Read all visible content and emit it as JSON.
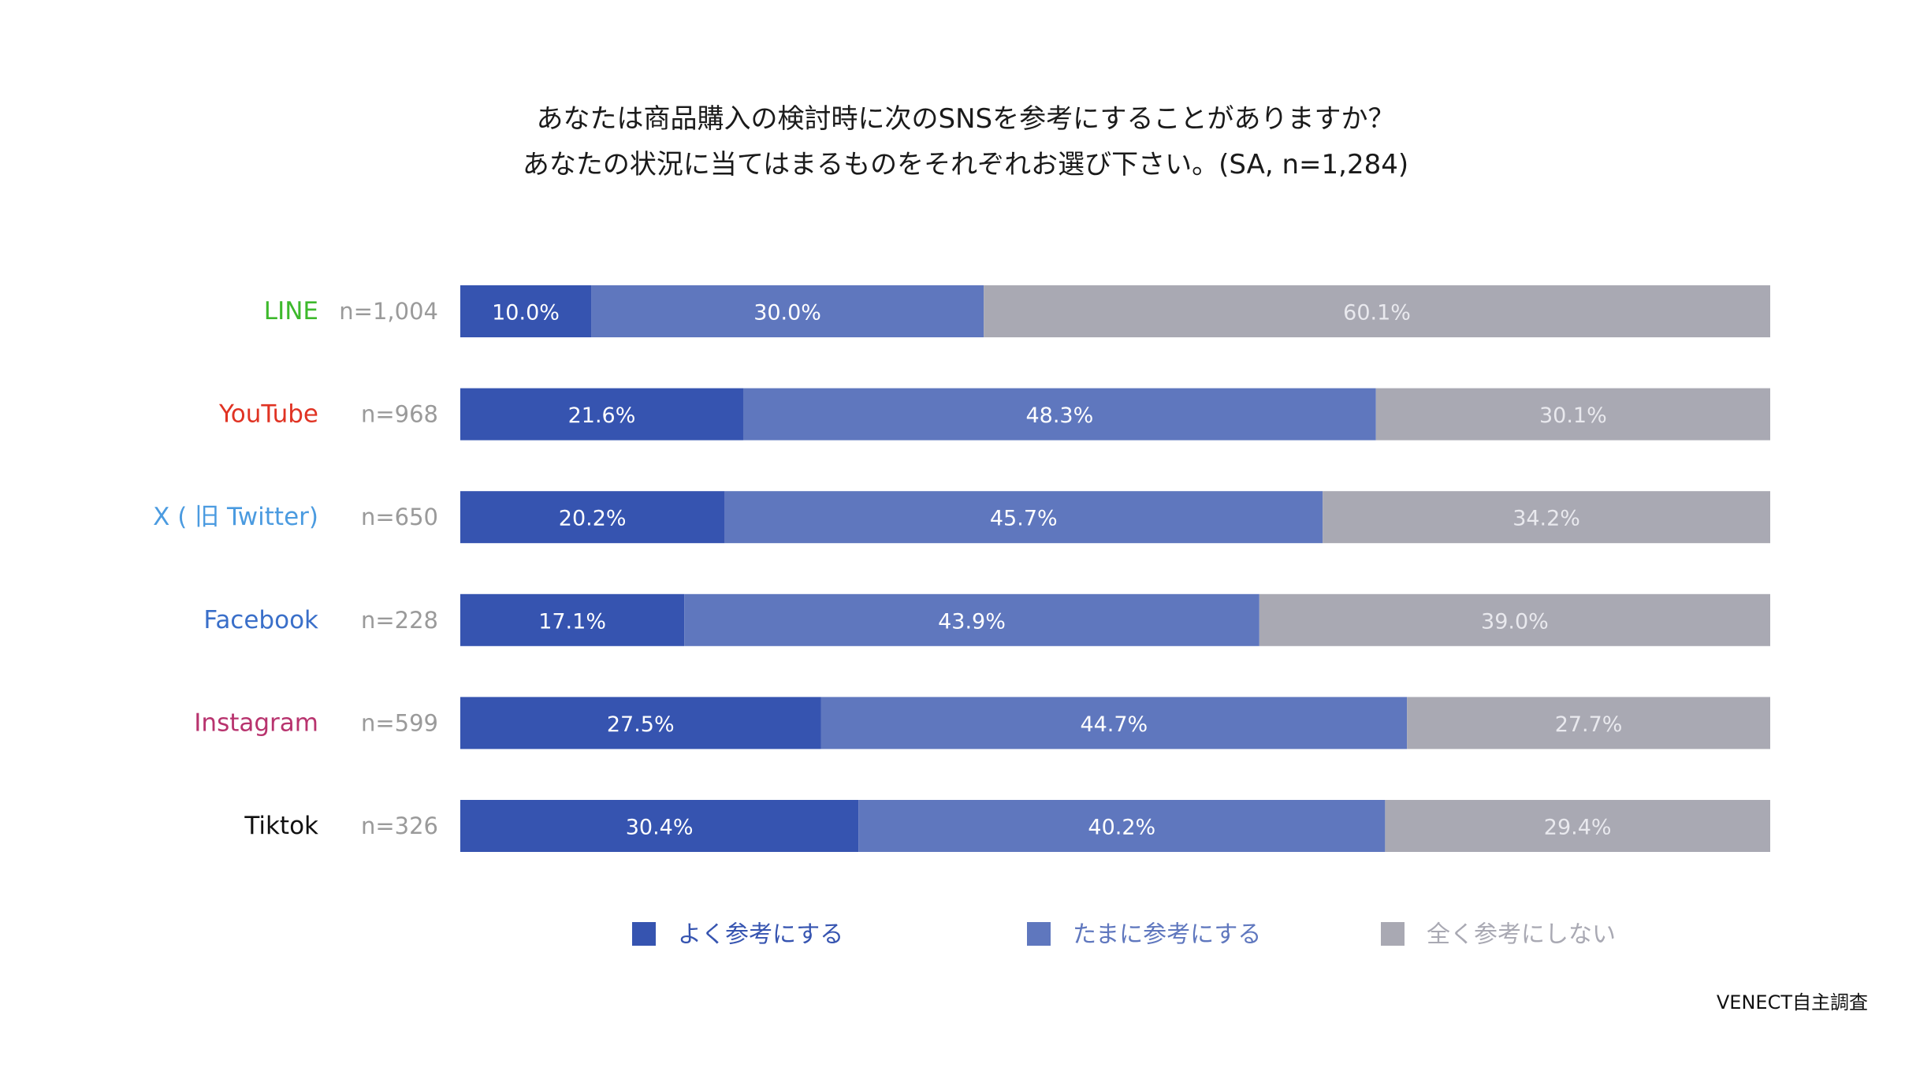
{
  "title_lines": [
    "あなたは商品購入の検討時に次のSNSを参考にすることがありますか？",
    "あなたの状況に当てはまるものをそれぞれお選び下さい。(SA, n=1,284)"
  ],
  "source": "VENECT自主調査",
  "colors": {
    "often": "#3654b0",
    "sometimes": "#5f77be",
    "never": "#a9a9b3",
    "n_label": "#9a9a9a"
  },
  "chart_data": {
    "type": "bar",
    "orientation": "horizontal",
    "stacked": true,
    "normalized": true,
    "title": "あなたは商品購入の検討時に次のSNSを参考にすることがありますか？ あなたの状況に当てはまるものをそれぞれお選び下さい。(SA, n=1,284)",
    "categories": [
      "LINE",
      "YouTube",
      "X ( 旧 Twitter)",
      "Facebook",
      "Instagram",
      "Tiktok"
    ],
    "category_colors": [
      "#3db92c",
      "#e03323",
      "#4b9be0",
      "#3a6fc9",
      "#b8336e",
      "#111111"
    ],
    "sample_sizes": [
      "n=1,004",
      "n=968",
      "n=650",
      "n=228",
      "n=599",
      "n=326"
    ],
    "series": [
      {
        "name": "よく参考にする",
        "color": "#3654b0",
        "label_color": "#ffffff",
        "values": [
          10.0,
          21.6,
          20.2,
          17.1,
          27.5,
          30.4
        ]
      },
      {
        "name": "たまに参考にする",
        "color": "#5f77be",
        "label_color": "#ffffff",
        "values": [
          30.0,
          48.3,
          45.7,
          43.9,
          44.7,
          40.2
        ]
      },
      {
        "name": "全く参考にしない",
        "color": "#a9a9b3",
        "label_color": "#e9e9ee",
        "values": [
          60.1,
          30.1,
          34.2,
          39.0,
          27.7,
          29.4
        ]
      }
    ],
    "value_suffix": "%",
    "legend_position": "bottom",
    "xlabel": "",
    "ylabel": ""
  }
}
